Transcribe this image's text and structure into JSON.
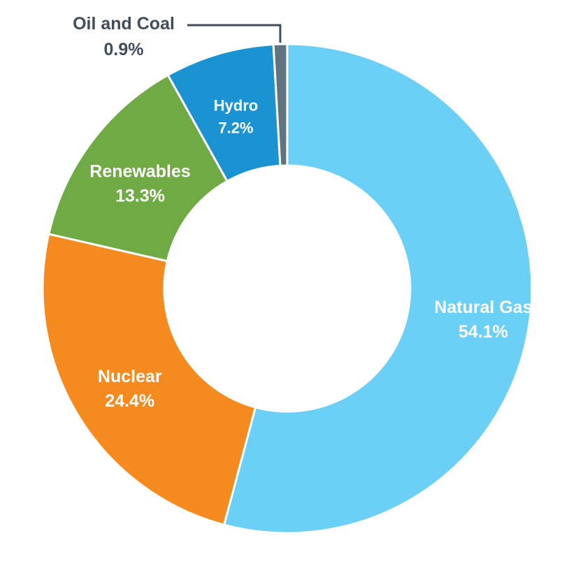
{
  "chart_data": {
    "type": "pie",
    "donut": true,
    "title": "",
    "slices": [
      {
        "name": "Natural Gas",
        "value": 54.1,
        "label": "54.1%",
        "color": "#6ccff6"
      },
      {
        "name": "Nuclear",
        "value": 24.4,
        "label": "24.4%",
        "color": "#f58b1f"
      },
      {
        "name": "Renewables",
        "value": 13.3,
        "label": "13.3%",
        "color": "#70aa44"
      },
      {
        "name": "Hydro",
        "value": 7.2,
        "label": "7.2%",
        "color": "#1b93d2"
      },
      {
        "name": "Oil and Coal",
        "value": 0.9,
        "label": "0.9%",
        "color": "#607380"
      }
    ],
    "label_color_inside": "#ffffff",
    "label_color_outside": "#3f4e5a"
  }
}
